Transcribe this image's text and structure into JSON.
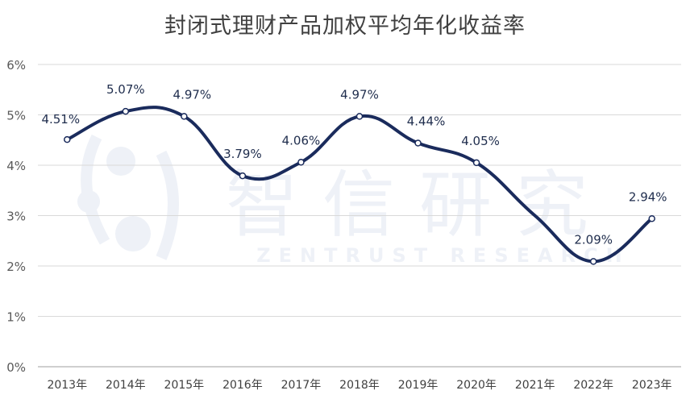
{
  "chart_data": {
    "type": "line",
    "title": "封闭式理财产品加权平均年化收益率",
    "xlabel": "",
    "ylabel": "",
    "categories": [
      "2013年",
      "2014年",
      "2015年",
      "2016年",
      "2017年",
      "2018年",
      "2019年",
      "2020年",
      "2021年",
      "2022年",
      "2023年"
    ],
    "series": [
      {
        "name": "加权平均年化收益率",
        "values": [
          4.51,
          5.07,
          4.97,
          3.79,
          4.06,
          4.97,
          4.44,
          4.05,
          null,
          2.09,
          2.94
        ],
        "labels": [
          "4.51%",
          "5.07%",
          "4.97%",
          "3.79%",
          "4.06%",
          "4.97%",
          "4.44%",
          "4.05%",
          "",
          "2.09%",
          "2.94%"
        ],
        "color": "#1a2b5c"
      }
    ],
    "interpolated_2021": 3.0,
    "ylim": [
      0,
      6
    ],
    "yticks": [
      "0%",
      "1%",
      "2%",
      "3%",
      "4%",
      "5%",
      "6%"
    ],
    "grid": true,
    "smooth": true,
    "legend": "none",
    "watermark": {
      "cn": "智信研究",
      "en": "ZENTRUST RESEARCH"
    }
  },
  "colors": {
    "line": "#1a2b5c",
    "grid": "#d9d9d9",
    "marker_fill": "#ffffff"
  }
}
